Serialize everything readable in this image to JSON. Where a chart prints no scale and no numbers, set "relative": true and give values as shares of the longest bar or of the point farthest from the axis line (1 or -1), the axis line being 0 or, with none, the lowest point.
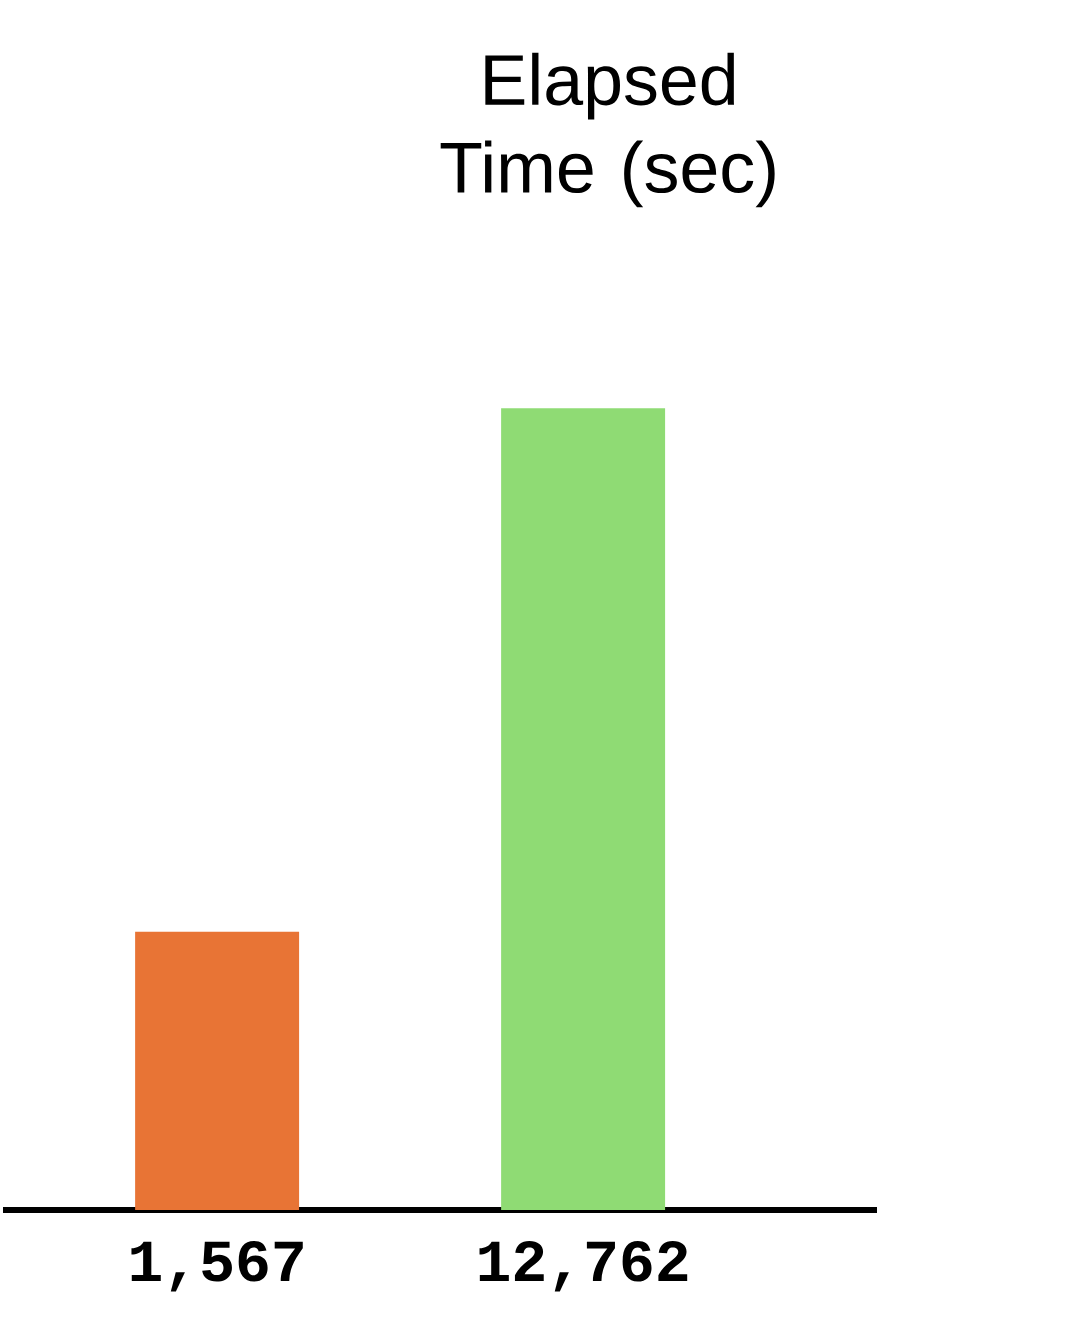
{
  "chart_data": {
    "type": "bar",
    "title": "Elapsed Time (sec)",
    "categories": [
      "1,567",
      "12,762"
    ],
    "values": [
      0.347,
      1
    ],
    "colors": [
      "#e87435",
      "#8fdb74"
    ],
    "relative": true
  }
}
